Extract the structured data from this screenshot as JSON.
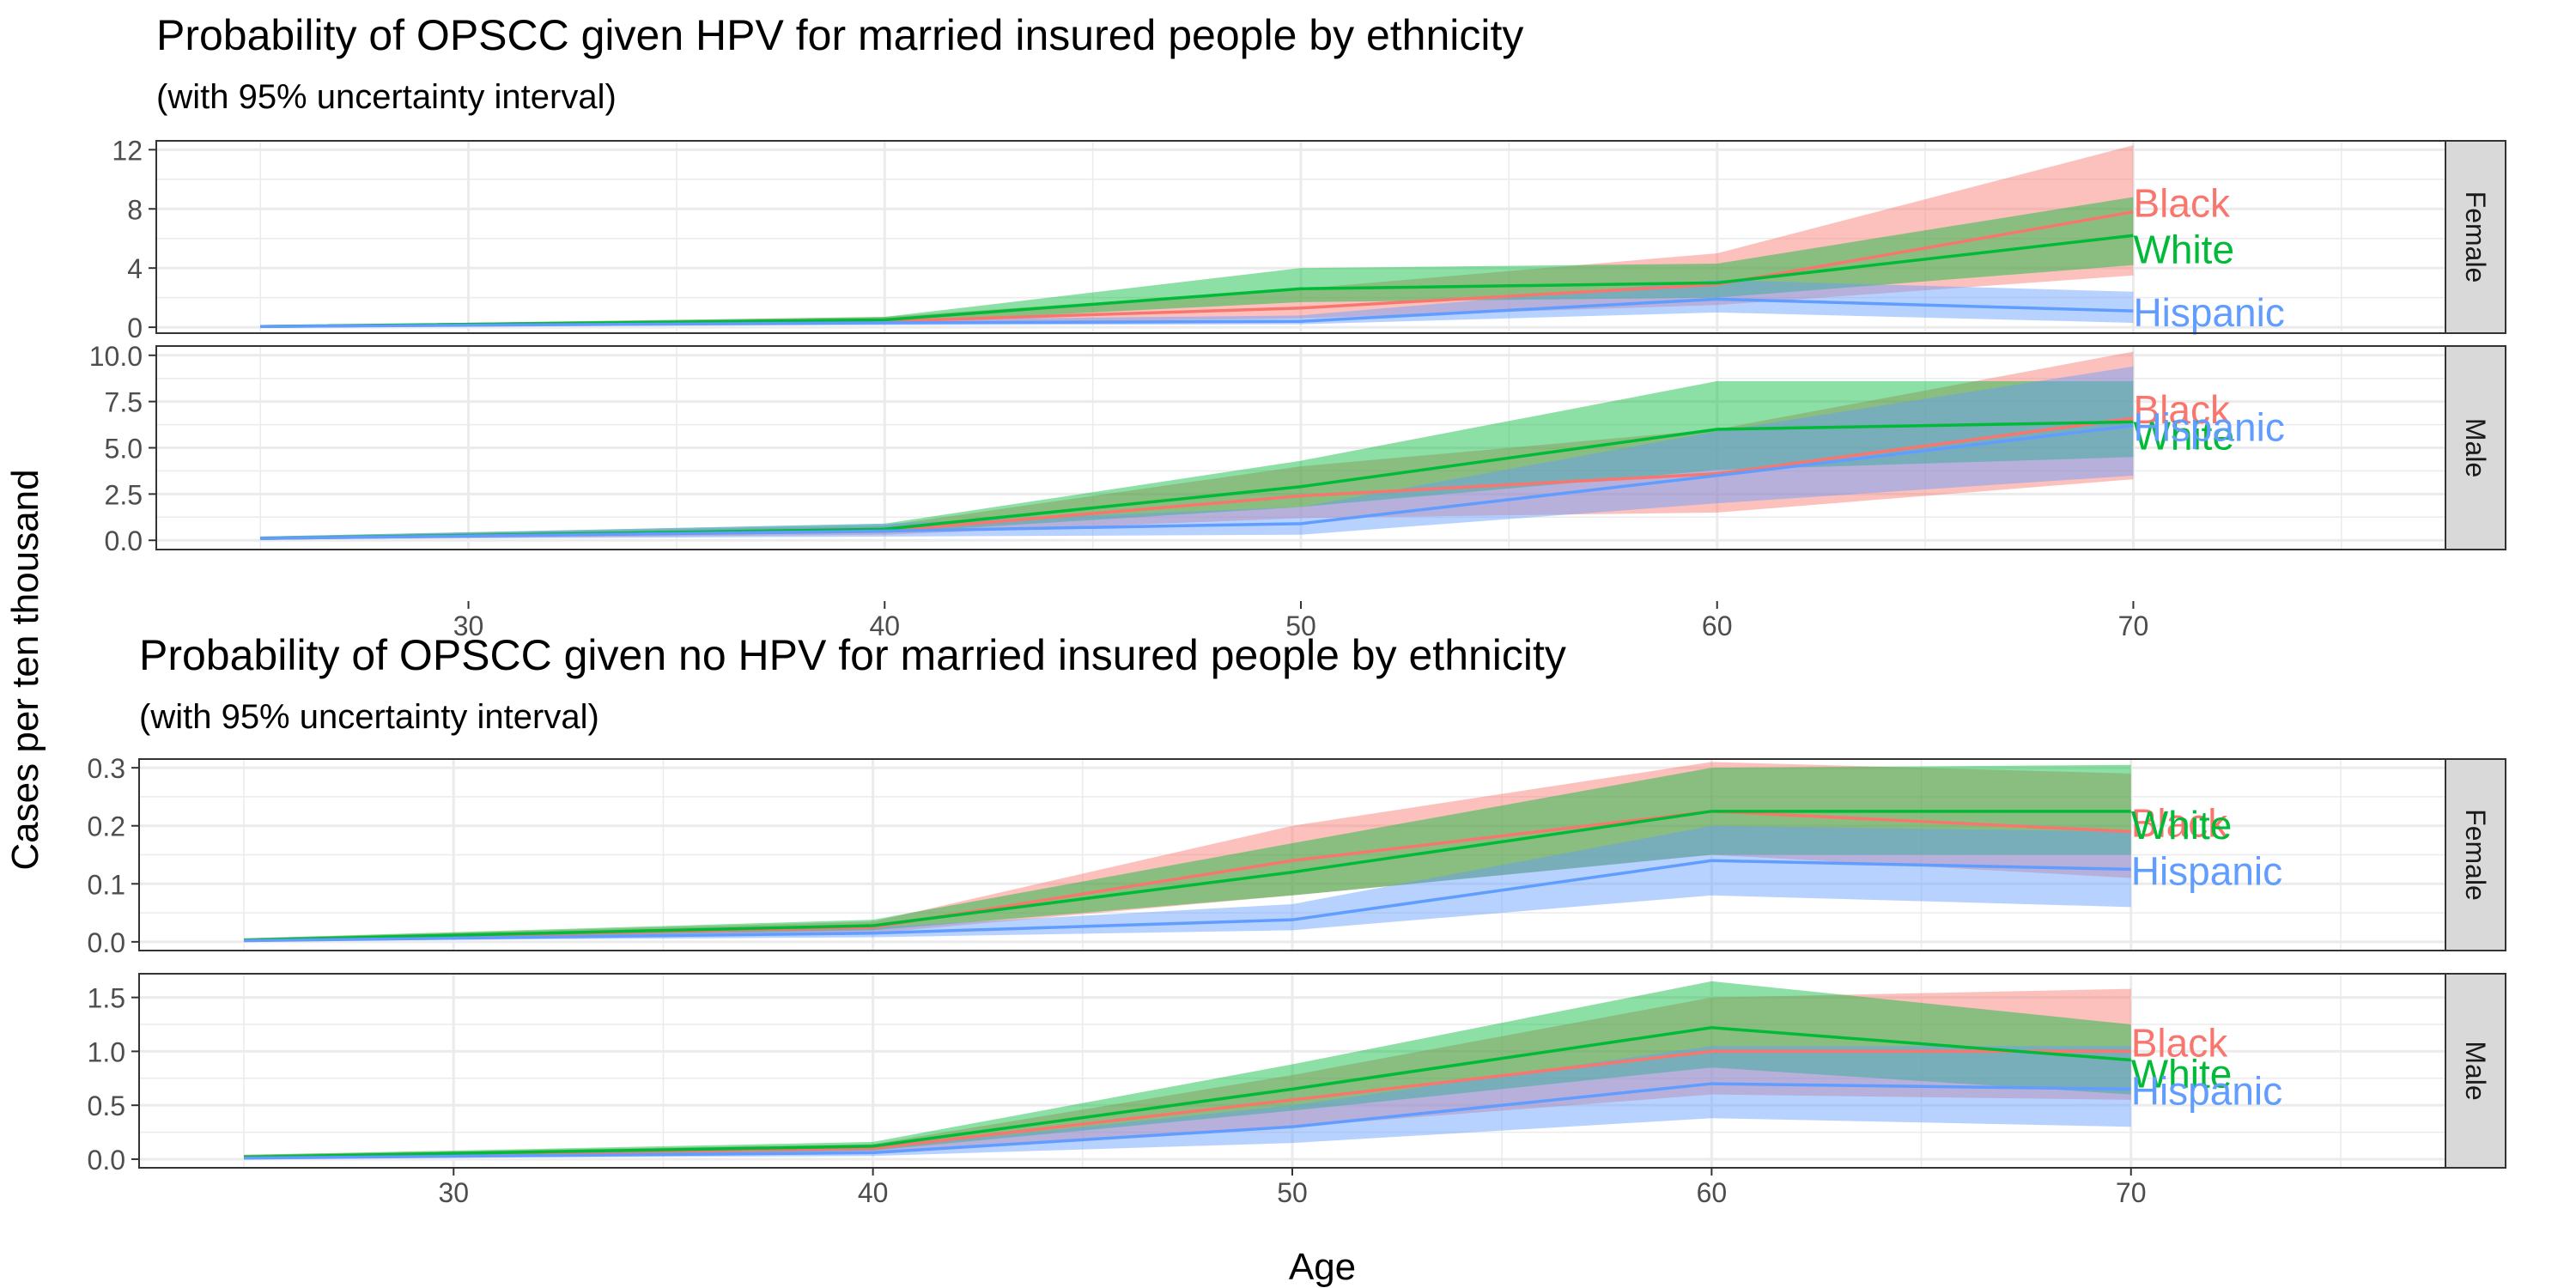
{
  "y_axis_label": "Cases per ten thousand",
  "x_axis_label": "Age",
  "colors": {
    "Black": "#F8766D",
    "White": "#00BA38",
    "Hispanic": "#619CFF",
    "strip": "#D9D9D9",
    "panel_border": "#333333",
    "grid": "#EBEBEB"
  },
  "chart_data": [
    {
      "type": "area",
      "title": "Probability of OPSCC given HPV for married insured people by ethnicity",
      "subtitle": "(with 95% uncertainty interval)",
      "xlabel": "Age",
      "ylabel": "Cases per ten thousand",
      "x_ticks": [
        30,
        40,
        50,
        60,
        70
      ],
      "xlim": [
        22.5,
        77.5
      ],
      "legend": "direct labels at line ends",
      "grid": true,
      "panels": [
        {
          "strip": "Female",
          "ylim": [
            -0.4,
            12.6
          ],
          "y_ticks": [
            0,
            4,
            8,
            12
          ],
          "y_tick_labels": [
            "0",
            "4",
            "8",
            "12"
          ],
          "series": [
            {
              "name": "Black",
              "x": [
                25,
                40,
                50,
                60,
                70
              ],
              "y": [
                0.05,
                0.4,
                1.3,
                2.9,
                7.8
              ],
              "lower": [
                0.02,
                0.2,
                0.6,
                1.5,
                3.5
              ],
              "upper": [
                0.1,
                0.7,
                2.6,
                5.0,
                12.3
              ]
            },
            {
              "name": "White",
              "x": [
                25,
                40,
                50,
                60,
                70
              ],
              "y": [
                0.05,
                0.5,
                2.6,
                3.0,
                6.2
              ],
              "lower": [
                0.02,
                0.3,
                1.7,
                2.0,
                4.2
              ],
              "upper": [
                0.1,
                0.7,
                4.0,
                4.3,
                8.8
              ]
            },
            {
              "name": "Hispanic",
              "x": [
                25,
                40,
                50,
                60,
                70
              ],
              "y": [
                0.05,
                0.3,
                0.4,
                1.9,
                1.1
              ],
              "lower": [
                0.02,
                0.15,
                0.2,
                1.0,
                0.3
              ],
              "upper": [
                0.1,
                0.5,
                0.8,
                3.2,
                2.4
              ]
            }
          ]
        },
        {
          "strip": "Male",
          "ylim": [
            -0.5,
            10.5
          ],
          "y_ticks": [
            0,
            2.5,
            5,
            7.5,
            10
          ],
          "y_tick_labels": [
            "0.0",
            "2.5",
            "5.0",
            "7.5",
            "10.0"
          ],
          "series": [
            {
              "name": "Black",
              "x": [
                25,
                40,
                50,
                60,
                70
              ],
              "y": [
                0.1,
                0.5,
                2.4,
                3.6,
                6.6
              ],
              "lower": [
                0.05,
                0.3,
                1.2,
                1.5,
                3.3
              ],
              "upper": [
                0.2,
                0.8,
                4.0,
                6.0,
                10.2
              ]
            },
            {
              "name": "White",
              "x": [
                25,
                40,
                50,
                60,
                70
              ],
              "y": [
                0.1,
                0.6,
                2.9,
                6.0,
                6.4
              ],
              "lower": [
                0.05,
                0.4,
                1.8,
                3.8,
                4.5
              ],
              "upper": [
                0.2,
                0.9,
                4.3,
                8.6,
                8.6
              ]
            },
            {
              "name": "Hispanic",
              "x": [
                25,
                40,
                50,
                60,
                70
              ],
              "y": [
                0.1,
                0.5,
                0.9,
                3.5,
                6.2
              ],
              "lower": [
                0.05,
                0.2,
                0.3,
                2.0,
                3.5
              ],
              "upper": [
                0.2,
                0.9,
                1.8,
                5.9,
                9.4
              ]
            }
          ]
        }
      ]
    },
    {
      "type": "area",
      "title": "Probability of OPSCC given no HPV for married insured people by ethnicity",
      "subtitle": "(with 95% uncertainty interval)",
      "xlabel": "Age",
      "ylabel": "Cases per ten thousand",
      "x_ticks": [
        30,
        40,
        50,
        60,
        70
      ],
      "xlim": [
        22.5,
        77.5
      ],
      "legend": "direct labels at line ends",
      "grid": true,
      "panels": [
        {
          "strip": "Female",
          "ylim": [
            -0.015,
            0.315
          ],
          "y_ticks": [
            0,
            0.1,
            0.2,
            0.3
          ],
          "y_tick_labels": [
            "0.0",
            "0.1",
            "0.2",
            "0.3"
          ],
          "series": [
            {
              "name": "Black",
              "x": [
                25,
                40,
                50,
                60,
                70
              ],
              "y": [
                0.003,
                0.025,
                0.14,
                0.225,
                0.19
              ],
              "lower": [
                0.001,
                0.015,
                0.08,
                0.15,
                0.11
              ],
              "upper": [
                0.006,
                0.035,
                0.2,
                0.31,
                0.29
              ]
            },
            {
              "name": "White",
              "x": [
                25,
                40,
                50,
                60,
                70
              ],
              "y": [
                0.003,
                0.028,
                0.12,
                0.225,
                0.225
              ],
              "lower": [
                0.001,
                0.02,
                0.08,
                0.15,
                0.15
              ],
              "upper": [
                0.006,
                0.038,
                0.17,
                0.3,
                0.305
              ]
            },
            {
              "name": "Hispanic",
              "x": [
                25,
                40,
                50,
                60,
                70
              ],
              "y": [
                0.002,
                0.015,
                0.038,
                0.14,
                0.125
              ],
              "lower": [
                0.001,
                0.008,
                0.02,
                0.08,
                0.06
              ],
              "upper": [
                0.004,
                0.025,
                0.065,
                0.2,
                0.19
              ]
            }
          ]
        },
        {
          "strip": "Male",
          "ylim": [
            -0.08,
            1.72
          ],
          "y_ticks": [
            0,
            0.5,
            1,
            1.5
          ],
          "y_tick_labels": [
            "0.0",
            "0.5",
            "1.0",
            "1.5"
          ],
          "series": [
            {
              "name": "Black",
              "x": [
                25,
                40,
                50,
                60,
                70
              ],
              "y": [
                0.02,
                0.1,
                0.55,
                1.0,
                1.0
              ],
              "lower": [
                0.01,
                0.06,
                0.3,
                0.6,
                0.55
              ],
              "upper": [
                0.04,
                0.14,
                0.78,
                1.5,
                1.58
              ]
            },
            {
              "name": "White",
              "x": [
                25,
                40,
                50,
                60,
                70
              ],
              "y": [
                0.02,
                0.12,
                0.65,
                1.22,
                0.92
              ],
              "lower": [
                0.01,
                0.08,
                0.45,
                0.85,
                0.6
              ],
              "upper": [
                0.04,
                0.16,
                0.88,
                1.65,
                1.25
              ]
            },
            {
              "name": "Hispanic",
              "x": [
                25,
                40,
                50,
                60,
                70
              ],
              "y": [
                0.01,
                0.06,
                0.3,
                0.7,
                0.65
              ],
              "lower": [
                0.005,
                0.03,
                0.15,
                0.38,
                0.3
              ],
              "upper": [
                0.02,
                0.1,
                0.5,
                1.05,
                1.05
              ]
            }
          ]
        }
      ]
    }
  ]
}
